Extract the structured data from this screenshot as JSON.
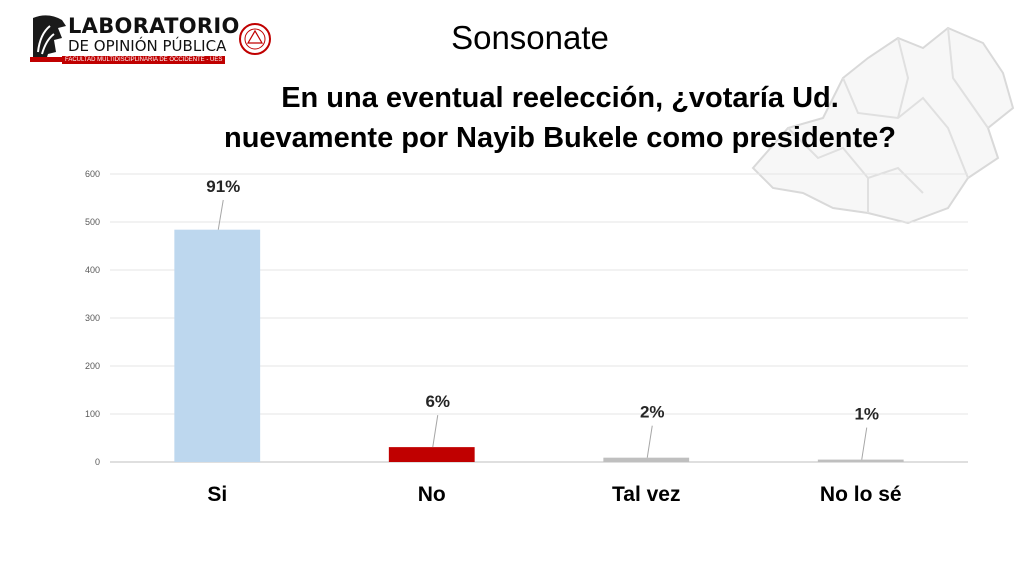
{
  "logo": {
    "title": "LABORATORIO",
    "subtitle": "DE OPINIÓN PÚBLICA",
    "faculty": "FACULTAD MULTIDISCIPLINARIA DE OCCIDENTE - UES",
    "icon": "lion-emblem-icon",
    "seal_icon": "university-seal-icon",
    "accent": "#c00000"
  },
  "header": {
    "title": "Sonsonate"
  },
  "question": {
    "line1": "En una eventual reelección, ¿votaría Ud.",
    "line2": "nuevamente por Nayib Bukele como presidente?"
  },
  "map_icon": "el-salvador-map-icon",
  "chart_data": {
    "type": "bar",
    "categories": [
      "Si",
      "No",
      "Tal vez",
      "No lo sé"
    ],
    "values": [
      484,
      31,
      9,
      5
    ],
    "data_labels": [
      "91%",
      "6%",
      "2%",
      "1%"
    ],
    "colors": [
      "#bdd7ee",
      "#c00000",
      "#bfbfbf",
      "#bfbfbf"
    ],
    "ylim": [
      0,
      600
    ],
    "yticks": [
      0,
      100,
      200,
      300,
      400,
      500,
      600
    ],
    "grid": true,
    "title": "",
    "xlabel": "",
    "ylabel": ""
  }
}
